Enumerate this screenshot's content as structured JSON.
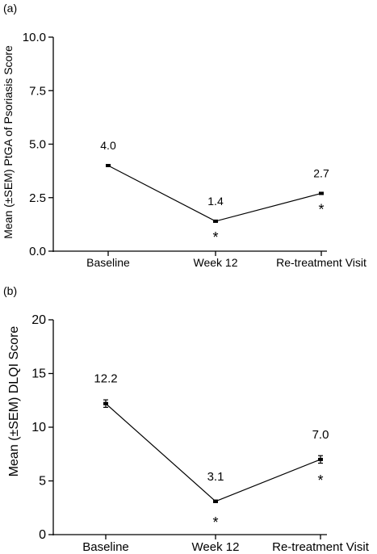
{
  "chart_data": [
    {
      "type": "line",
      "panel_label": "(a)",
      "title": "",
      "xlabel": "",
      "ylabel": "Mean (±SEM) PtGA of Psoriasis Score",
      "categories": [
        "Baseline",
        "Week 12",
        "Re-treatment Visit"
      ],
      "ylim": [
        0,
        10
      ],
      "yticks": [
        "0.0",
        "2.5",
        "5.0",
        "7.5",
        "10.0"
      ],
      "series": [
        {
          "values": [
            4.0,
            1.4,
            2.7
          ],
          "sem": [
            0.03,
            0.05,
            0.05
          ],
          "labels": [
            "4.0",
            "1.4",
            "2.7"
          ],
          "significance": [
            "",
            "*",
            "*"
          ]
        }
      ],
      "grid": false
    },
    {
      "type": "line",
      "panel_label": "(b)",
      "title": "",
      "xlabel": "",
      "ylabel": "Mean (±SEM) DLQI Score",
      "categories": [
        "Baseline",
        "Week 12",
        "Re-treatment Visit"
      ],
      "ylim": [
        0,
        20
      ],
      "yticks": [
        "0",
        "5",
        "10",
        "15",
        "20"
      ],
      "series": [
        {
          "values": [
            12.2,
            3.1,
            7.0
          ],
          "sem": [
            0.35,
            0.12,
            0.35
          ],
          "labels": [
            "12.2",
            "3.1",
            "7.0"
          ],
          "significance": [
            "",
            "*",
            "*"
          ]
        }
      ],
      "grid": false
    }
  ]
}
